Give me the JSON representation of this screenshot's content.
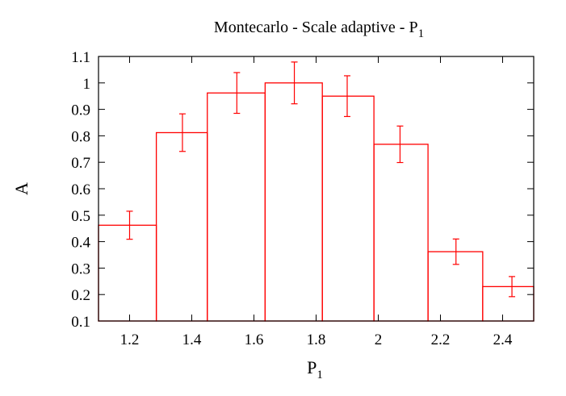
{
  "chart_data": {
    "type": "bar",
    "title": "Montecarlo - Scale adaptive - P",
    "title_subscript": "1",
    "xlabel": "P",
    "xlabel_subscript": "1",
    "ylabel": "A",
    "xlim": [
      1.1,
      2.5
    ],
    "ylim": [
      0.1,
      1.1
    ],
    "xticks": [
      "1.2",
      "1.4",
      "1.6",
      "1.8",
      "2",
      "2.2",
      "2.4"
    ],
    "yticks": [
      "0.1",
      "0.2",
      "0.3",
      "0.4",
      "0.5",
      "0.6",
      "0.7",
      "0.8",
      "0.9",
      "1",
      "1.1"
    ],
    "bins": [
      {
        "x0": 1.1,
        "x1": 1.286,
        "value": 0.462,
        "err": 0.053
      },
      {
        "x0": 1.286,
        "x1": 1.45,
        "value": 0.812,
        "err": 0.071
      },
      {
        "x0": 1.45,
        "x1": 1.636,
        "value": 0.962,
        "err": 0.077
      },
      {
        "x0": 1.636,
        "x1": 1.82,
        "value": 1.0,
        "err": 0.079
      },
      {
        "x0": 1.82,
        "x1": 1.986,
        "value": 0.95,
        "err": 0.077
      },
      {
        "x0": 1.986,
        "x1": 2.16,
        "value": 0.768,
        "err": 0.069
      },
      {
        "x0": 2.16,
        "x1": 2.336,
        "value": 0.362,
        "err": 0.048
      },
      {
        "x0": 2.336,
        "x1": 2.5,
        "value": 0.23,
        "err": 0.038
      }
    ],
    "error_x": [
      1.2,
      1.37,
      1.545,
      1.73,
      1.9,
      2.07,
      2.25,
      2.43
    ],
    "color": "#ff0000",
    "grid": false
  }
}
